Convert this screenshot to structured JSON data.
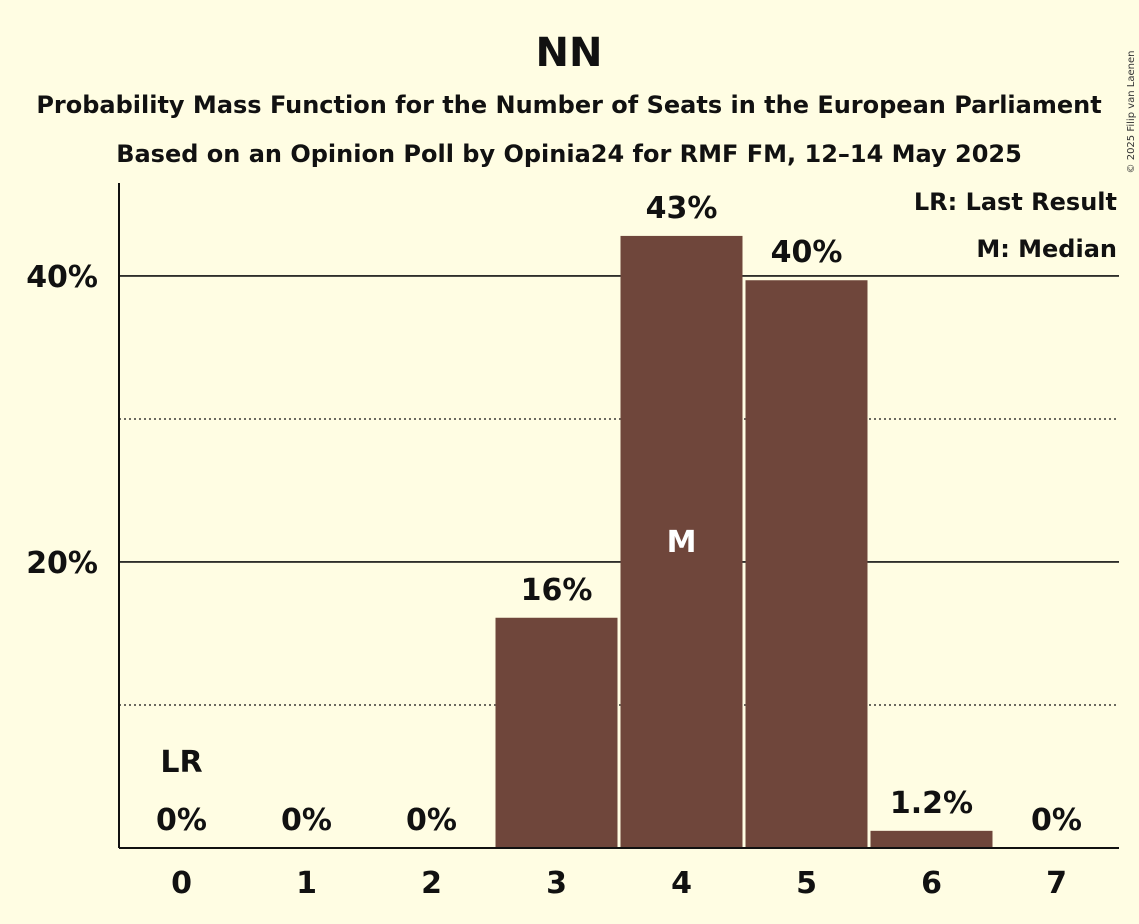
{
  "chart_data": {
    "type": "bar",
    "title": "NN",
    "subtitle1": "Probability Mass Function for the Number of Seats in the European Parliament",
    "subtitle2": "Based on an Opinion Poll by Opinia24 for RMF FM, 12–14 May 2025",
    "categories": [
      "0",
      "1",
      "2",
      "3",
      "4",
      "5",
      "6",
      "7"
    ],
    "values": [
      0,
      0,
      0,
      16.1,
      42.8,
      39.7,
      1.2,
      0
    ],
    "labels": [
      "0%",
      "0%",
      "0%",
      "16%",
      "43%",
      "40%",
      "1.2%",
      "0%"
    ],
    "last_result_index": 0,
    "last_result_mark": "LR",
    "median_index": 4,
    "median_mark": "M",
    "ylim": [
      0,
      46.5
    ],
    "yticks_major": [
      {
        "value": 20,
        "label": "20%"
      },
      {
        "value": 40,
        "label": "40%"
      }
    ],
    "yticks_minor": [
      10,
      30
    ],
    "legend": [
      "LR: Last Result",
      "M: Median"
    ],
    "legend_position": "top-right",
    "bar_color": "#6f463b",
    "copyright": "© 2025 Filip van Laenen"
  }
}
